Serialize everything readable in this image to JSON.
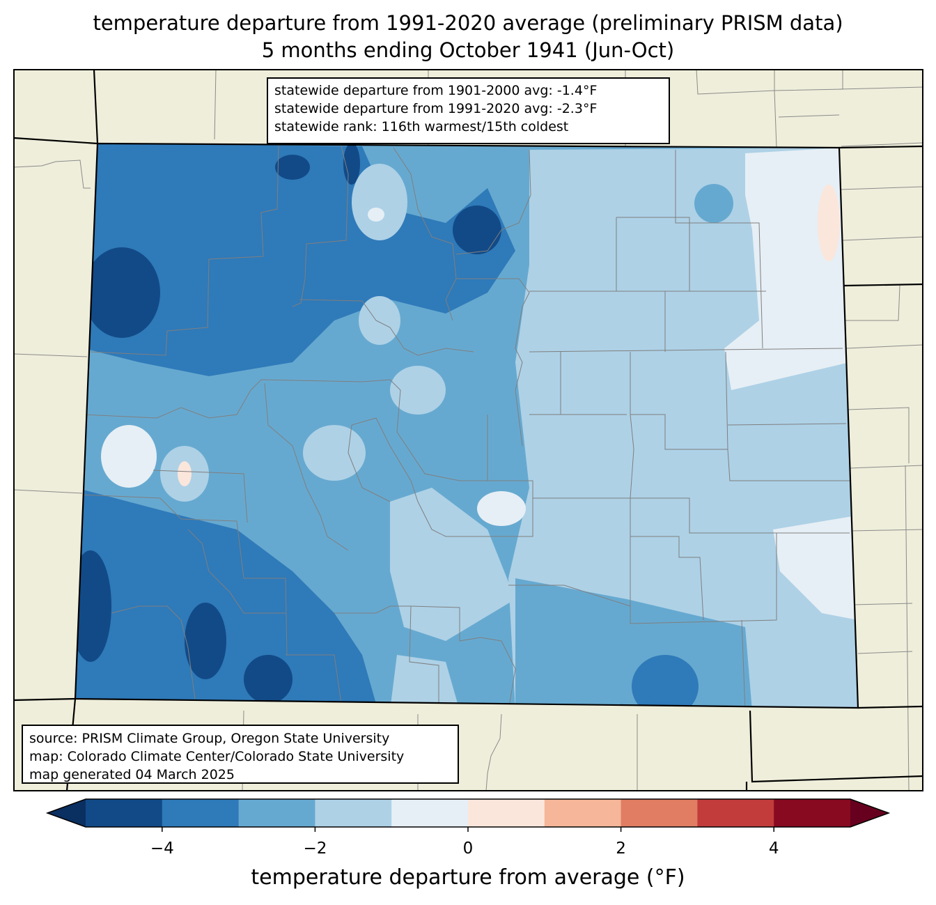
{
  "title": {
    "line1": "temperature departure from 1991-2020 average (preliminary PRISM data)",
    "line2": "5 months ending October 1941 (Jun-Oct)"
  },
  "stats": {
    "line1": "statewide departure from 1901-2000 avg: -1.4°F",
    "line2": "statewide departure from 1991-2020 avg: -2.3°F",
    "line3": "statewide rank: 116th warmest/15th coldest"
  },
  "source": {
    "line1": "source: PRISM Climate Group, Oregon State University",
    "line2": "map: Colorado Climate Center/Colorado State University",
    "line3": "map generated 04 March 2025"
  },
  "colorbar": {
    "label": "temperature departure from average (°F)",
    "ticks": [
      "−4",
      "−2",
      "0",
      "2",
      "4"
    ],
    "bins": [
      -5,
      -4,
      -3,
      -2,
      -1,
      0,
      1,
      2,
      3,
      4,
      5
    ],
    "colors": [
      "#124a87",
      "#2f7ab9",
      "#66a9d0",
      "#aed1e6",
      "#e6eff5",
      "#fbe6dc",
      "#f5b699",
      "#e07d62",
      "#c23c3c",
      "#880a20"
    ],
    "under_color": "#0a2f61",
    "over_color": "#67001f"
  },
  "map_colors": {
    "land_background": "#efeedb",
    "state_border": "#000000",
    "county_border": "#7f7f7f"
  }
}
